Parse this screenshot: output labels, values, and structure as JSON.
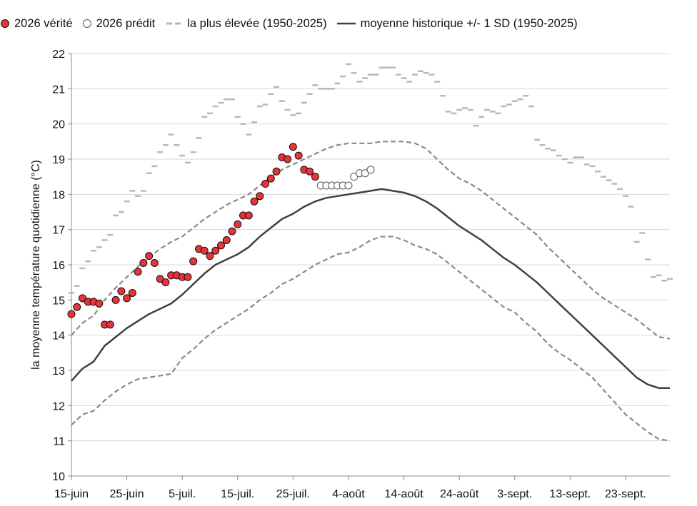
{
  "chart_data": {
    "type": "line",
    "title": "",
    "xlabel": "",
    "ylabel": "la moyenne température quotidienne (°C)",
    "ylim": [
      10,
      22
    ],
    "x_start": "15-juin",
    "x_end": "3-oct.",
    "x_ticks": [
      {
        "day": 0,
        "label": "15-juin"
      },
      {
        "day": 10,
        "label": "25-juin"
      },
      {
        "day": 20,
        "label": "5-juil."
      },
      {
        "day": 30,
        "label": "15-juil."
      },
      {
        "day": 40,
        "label": "25-juil."
      },
      {
        "day": 50,
        "label": "4-août"
      },
      {
        "day": 60,
        "label": "14-août"
      },
      {
        "day": 70,
        "label": "24-août"
      },
      {
        "day": 80,
        "label": "3-sept."
      },
      {
        "day": 90,
        "label": "13-sept."
      },
      {
        "day": 100,
        "label": "23-sept."
      }
    ],
    "y_ticks": [
      10,
      11,
      12,
      13,
      14,
      15,
      16,
      17,
      18,
      19,
      20,
      21,
      22
    ],
    "grid": "horizontal",
    "legend_position": "top",
    "legend": [
      {
        "label": "2026 vérité",
        "style": "red-filled-circle"
      },
      {
        "label": "2026 prédit",
        "style": "open-circle"
      },
      {
        "label": "la plus élevée (1950-2025)",
        "style": "gray-dash"
      },
      {
        "label": "moyenne historique +/- 1 SD (1950-2025)",
        "style": "dark-line"
      }
    ],
    "colors": {
      "observed": "#e8333a",
      "mean": "#404040",
      "sd": "#8a8a8a",
      "highest": "#b8b8b8",
      "grid": "#d9d9d9"
    },
    "series": [
      {
        "name": "moyenne historique +/- 1 SD (1950-2025)",
        "role": "mean",
        "x": [
          0,
          2,
          4,
          6,
          8,
          10,
          12,
          14,
          16,
          18,
          20,
          22,
          24,
          26,
          28,
          30,
          32,
          34,
          36,
          38,
          40,
          42,
          44,
          46,
          48,
          50,
          52,
          54,
          56,
          58,
          60,
          62,
          64,
          66,
          68,
          70,
          72,
          74,
          76,
          78,
          80,
          82,
          84,
          86,
          88,
          90,
          92,
          94,
          96,
          98,
          100,
          102,
          104,
          106,
          108
        ],
        "y": [
          12.7,
          13.05,
          13.25,
          13.7,
          13.95,
          14.2,
          14.4,
          14.6,
          14.75,
          14.9,
          15.15,
          15.45,
          15.75,
          16.0,
          16.15,
          16.3,
          16.5,
          16.8,
          17.05,
          17.3,
          17.45,
          17.65,
          17.8,
          17.9,
          17.95,
          18.0,
          18.05,
          18.1,
          18.15,
          18.1,
          18.05,
          17.95,
          17.8,
          17.6,
          17.35,
          17.1,
          16.9,
          16.7,
          16.45,
          16.2,
          16.0,
          15.75,
          15.5,
          15.2,
          14.9,
          14.6,
          14.3,
          14.0,
          13.7,
          13.4,
          13.1,
          12.8,
          12.6,
          12.5,
          12.5
        ]
      },
      {
        "name": "",
        "role": "sd-upper",
        "x": [
          0,
          2,
          4,
          6,
          8,
          10,
          12,
          14,
          16,
          18,
          20,
          22,
          24,
          26,
          28,
          30,
          32,
          34,
          36,
          38,
          40,
          42,
          44,
          46,
          48,
          50,
          52,
          54,
          56,
          58,
          60,
          62,
          64,
          66,
          68,
          70,
          72,
          74,
          76,
          78,
          80,
          82,
          84,
          86,
          88,
          90,
          92,
          94,
          96,
          98,
          100,
          102,
          104,
          106,
          108
        ],
        "y": [
          14.0,
          14.35,
          14.55,
          15.0,
          15.35,
          15.65,
          15.95,
          16.2,
          16.45,
          16.65,
          16.8,
          17.05,
          17.3,
          17.5,
          17.7,
          17.85,
          18.0,
          18.25,
          18.5,
          18.7,
          18.85,
          19.0,
          19.15,
          19.3,
          19.4,
          19.45,
          19.45,
          19.45,
          19.5,
          19.5,
          19.5,
          19.45,
          19.3,
          19.0,
          18.7,
          18.45,
          18.3,
          18.1,
          17.85,
          17.6,
          17.35,
          17.1,
          16.85,
          16.5,
          16.2,
          15.9,
          15.6,
          15.3,
          15.05,
          14.85,
          14.65,
          14.45,
          14.2,
          13.95,
          13.9
        ]
      },
      {
        "name": "",
        "role": "sd-lower",
        "x": [
          0,
          2,
          4,
          6,
          8,
          10,
          12,
          14,
          16,
          18,
          20,
          22,
          24,
          26,
          28,
          30,
          32,
          34,
          36,
          38,
          40,
          42,
          44,
          46,
          48,
          50,
          52,
          54,
          56,
          58,
          60,
          62,
          64,
          66,
          68,
          70,
          72,
          74,
          76,
          78,
          80,
          82,
          84,
          86,
          88,
          90,
          92,
          94,
          96,
          98,
          100,
          102,
          104,
          106,
          108
        ],
        "y": [
          11.45,
          11.75,
          11.85,
          12.15,
          12.4,
          12.6,
          12.75,
          12.8,
          12.85,
          12.9,
          13.35,
          13.6,
          13.9,
          14.15,
          14.35,
          14.55,
          14.75,
          15.0,
          15.2,
          15.45,
          15.6,
          15.8,
          16.0,
          16.15,
          16.3,
          16.35,
          16.5,
          16.7,
          16.8,
          16.8,
          16.7,
          16.55,
          16.45,
          16.3,
          16.05,
          15.8,
          15.55,
          15.3,
          15.05,
          14.8,
          14.65,
          14.35,
          14.1,
          13.75,
          13.5,
          13.3,
          13.05,
          12.8,
          12.45,
          12.1,
          11.75,
          11.5,
          11.25,
          11.05,
          11.0
        ]
      },
      {
        "name": "la plus élevée (1950-2025)",
        "role": "highest",
        "x": [
          0,
          1,
          2,
          3,
          4,
          5,
          6,
          7,
          8,
          9,
          10,
          11,
          12,
          13,
          14,
          15,
          16,
          17,
          18,
          19,
          20,
          21,
          22,
          23,
          24,
          25,
          26,
          27,
          28,
          29,
          30,
          31,
          32,
          33,
          34,
          35,
          36,
          37,
          38,
          39,
          40,
          41,
          42,
          43,
          44,
          45,
          46,
          47,
          48,
          49,
          50,
          51,
          52,
          53,
          54,
          55,
          56,
          57,
          58,
          59,
          60,
          61,
          62,
          63,
          64,
          65,
          66,
          67,
          68,
          69,
          70,
          71,
          72,
          73,
          74,
          75,
          76,
          77,
          78,
          79,
          80,
          81,
          82,
          83,
          84,
          85,
          86,
          87,
          88,
          89,
          90,
          91,
          92,
          93,
          94,
          95,
          96,
          97,
          98,
          99,
          100,
          101,
          102,
          103,
          104,
          105,
          106,
          107,
          108
        ],
        "y": [
          15.2,
          15.4,
          15.9,
          16.1,
          16.4,
          16.5,
          16.7,
          16.85,
          17.4,
          17.5,
          17.8,
          18.1,
          17.95,
          18.1,
          18.6,
          18.8,
          19.2,
          19.4,
          19.7,
          19.4,
          19.1,
          18.9,
          19.2,
          19.6,
          20.2,
          20.3,
          20.5,
          20.6,
          20.7,
          20.7,
          20.2,
          20.0,
          19.7,
          20.05,
          20.5,
          20.55,
          20.85,
          21.05,
          20.65,
          20.4,
          20.25,
          20.3,
          20.6,
          20.85,
          21.1,
          21.0,
          21.0,
          21.0,
          21.15,
          21.35,
          21.7,
          21.45,
          21.2,
          21.3,
          21.4,
          21.4,
          21.6,
          21.6,
          21.6,
          21.4,
          21.3,
          21.2,
          21.4,
          21.5,
          21.45,
          21.4,
          21.2,
          20.8,
          20.35,
          20.3,
          20.4,
          20.45,
          20.4,
          19.95,
          20.2,
          20.4,
          20.35,
          20.3,
          20.5,
          20.55,
          20.65,
          20.7,
          20.8,
          20.5,
          19.55,
          19.4,
          19.3,
          19.25,
          19.1,
          19.0,
          18.9,
          19.05,
          19.05,
          18.85,
          18.8,
          18.65,
          18.5,
          18.4,
          18.3,
          18.15,
          17.95,
          17.65,
          16.65,
          16.9,
          16.15,
          15.65,
          15.7,
          15.55,
          15.6
        ]
      },
      {
        "name": "2026 vérité",
        "role": "observed",
        "x": [
          0,
          1,
          2,
          3,
          4,
          5,
          6,
          7,
          8,
          9,
          10,
          11,
          12,
          13,
          14,
          15,
          16,
          17,
          18,
          19,
          20,
          21,
          22,
          23,
          24,
          25,
          26,
          27,
          28,
          29,
          30,
          31,
          32,
          33,
          34,
          35,
          36,
          37,
          38,
          39,
          40,
          41,
          42,
          43,
          44
        ],
        "y": [
          14.6,
          14.8,
          15.05,
          14.95,
          14.95,
          14.9,
          14.3,
          14.3,
          15.0,
          15.25,
          15.05,
          15.2,
          15.8,
          16.05,
          16.25,
          16.05,
          15.6,
          15.5,
          15.7,
          15.7,
          15.65,
          15.65,
          16.1,
          16.45,
          16.4,
          16.25,
          16.4,
          16.55,
          16.7,
          16.95,
          17.15,
          17.4,
          17.4,
          17.8,
          17.95,
          18.3,
          18.45,
          18.65,
          19.05,
          19.0,
          19.35,
          19.1,
          18.7,
          18.65,
          18.5
        ]
      },
      {
        "name": "2026 prédit",
        "role": "predicted",
        "x": [
          45,
          46,
          47,
          48,
          49,
          50,
          51,
          52,
          53,
          54
        ],
        "y": [
          18.25,
          18.25,
          18.25,
          18.25,
          18.25,
          18.25,
          18.5,
          18.6,
          18.6,
          18.7
        ]
      }
    ]
  }
}
